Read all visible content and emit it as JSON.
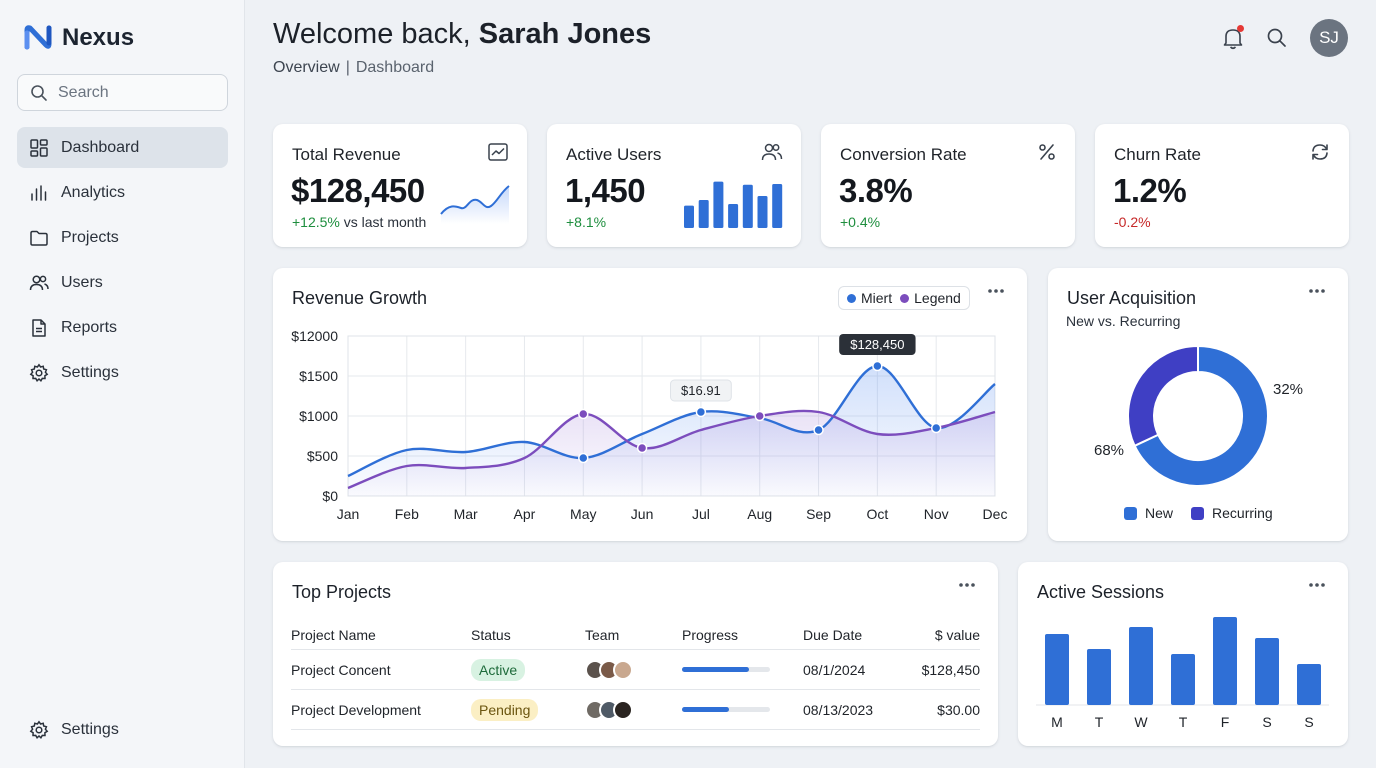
{
  "app": {
    "name": "Nexus"
  },
  "search": {
    "placeholder": "Search"
  },
  "sidebar": {
    "items": [
      {
        "label": "Dashboard",
        "icon": "dashboard-icon",
        "active": true
      },
      {
        "label": "Analytics",
        "icon": "bar-chart-icon"
      },
      {
        "label": "Projects",
        "icon": "folder-icon"
      },
      {
        "label": "Users",
        "icon": "users-icon"
      },
      {
        "label": "Reports",
        "icon": "document-icon"
      },
      {
        "label": "Settings",
        "icon": "gear-icon"
      }
    ],
    "bottom": {
      "label": "Settings",
      "icon": "gear-icon"
    }
  },
  "header": {
    "greeting": "Welcome back,",
    "user_name": "Sarah Jones",
    "breadcrumb": [
      "Overview",
      "|",
      "Dashboard"
    ],
    "avatar_initials": "SJ"
  },
  "kpis": [
    {
      "title": "Total Revenue",
      "value": "$128,450",
      "delta": "+12.5%",
      "delta_suffix": "vs last month",
      "icon": "trend-chart-icon",
      "trend": "up"
    },
    {
      "title": "Active Users",
      "value": "1,450",
      "delta": "+8.1%",
      "icon": "users-icon",
      "trend": "up"
    },
    {
      "title": "Conversion Rate",
      "value": "3.8%",
      "delta": "+0.4%",
      "icon": "percent-icon",
      "trend": "up"
    },
    {
      "title": "Churn Rate",
      "value": "1.2%",
      "delta": "-0.2%",
      "icon": "refresh-icon",
      "trend": "down"
    }
  ],
  "revenue_growth": {
    "title": "Revenue Growth",
    "legend": [
      "Miert",
      "Legend"
    ]
  },
  "user_acquisition": {
    "title": "User Acquisition",
    "subtitle": "New vs. Recurring",
    "legend": [
      "New",
      "Recurring"
    ]
  },
  "top_projects": {
    "title": "Top Projects",
    "columns": [
      "Project Name",
      "Status",
      "Team",
      "Progress",
      "Due Date",
      "$ value"
    ],
    "rows": [
      {
        "name": "Project Concent",
        "status": "Active",
        "progress": 0.76,
        "due": "08/1/2024",
        "value": "$128,450"
      },
      {
        "name": "Project Development",
        "status": "Pending",
        "progress": 0.53,
        "due": "08/13/2023",
        "value": "$30.00"
      }
    ]
  },
  "active_sessions": {
    "title": "Active Sessions"
  },
  "colors": {
    "primary": "#2f6fd6",
    "purple": "#7c4dbd",
    "recurring": "#3f3fc4",
    "positive": "#1e8e3e",
    "negative": "#c62828"
  },
  "chart_data": [
    {
      "type": "line",
      "title": "Revenue Growth",
      "categories": [
        "Jan",
        "Feb",
        "Mar",
        "Apr",
        "May",
        "Jun",
        "Jul",
        "Aug",
        "Sep",
        "Oct",
        "Nov",
        "Dec"
      ],
      "y_ticks": [
        "$0",
        "$500",
        "$1000",
        "$1500",
        "$12000"
      ],
      "series": [
        {
          "name": "Miert",
          "color": "#2f6fd6",
          "values": [
            1,
            2.3,
            2.2,
            2.7,
            1.9,
            3.1,
            4.2,
            3.9,
            3.3,
            6.5,
            3.4,
            5.6
          ]
        },
        {
          "name": "Legend",
          "color": "#7c4dbd",
          "values": [
            0.4,
            1.5,
            1.4,
            1.9,
            4.1,
            2.4,
            3.3,
            4.0,
            4.2,
            3.1,
            3.4,
            4.2
          ]
        }
      ],
      "annotations": [
        {
          "x": "Jul",
          "label": "$16.91"
        },
        {
          "x": "Oct",
          "label": "$128,450"
        }
      ],
      "grid": true
    },
    {
      "type": "pie",
      "title": "User Acquisition",
      "categories": [
        "New",
        "Recurring"
      ],
      "values": [
        68,
        32
      ],
      "labels": [
        "68%",
        "32%"
      ],
      "colors": [
        "#2f6fd6",
        "#3f3fc4"
      ]
    },
    {
      "type": "bar",
      "title": "Active Sessions",
      "categories": [
        "M",
        "T",
        "W",
        "T",
        "F",
        "S",
        "S"
      ],
      "values": [
        71,
        56,
        78,
        51,
        88,
        67,
        41
      ]
    },
    {
      "type": "bar",
      "title": "Active Users",
      "values": [
        28,
        35,
        58,
        30,
        54,
        40,
        55
      ]
    }
  ]
}
